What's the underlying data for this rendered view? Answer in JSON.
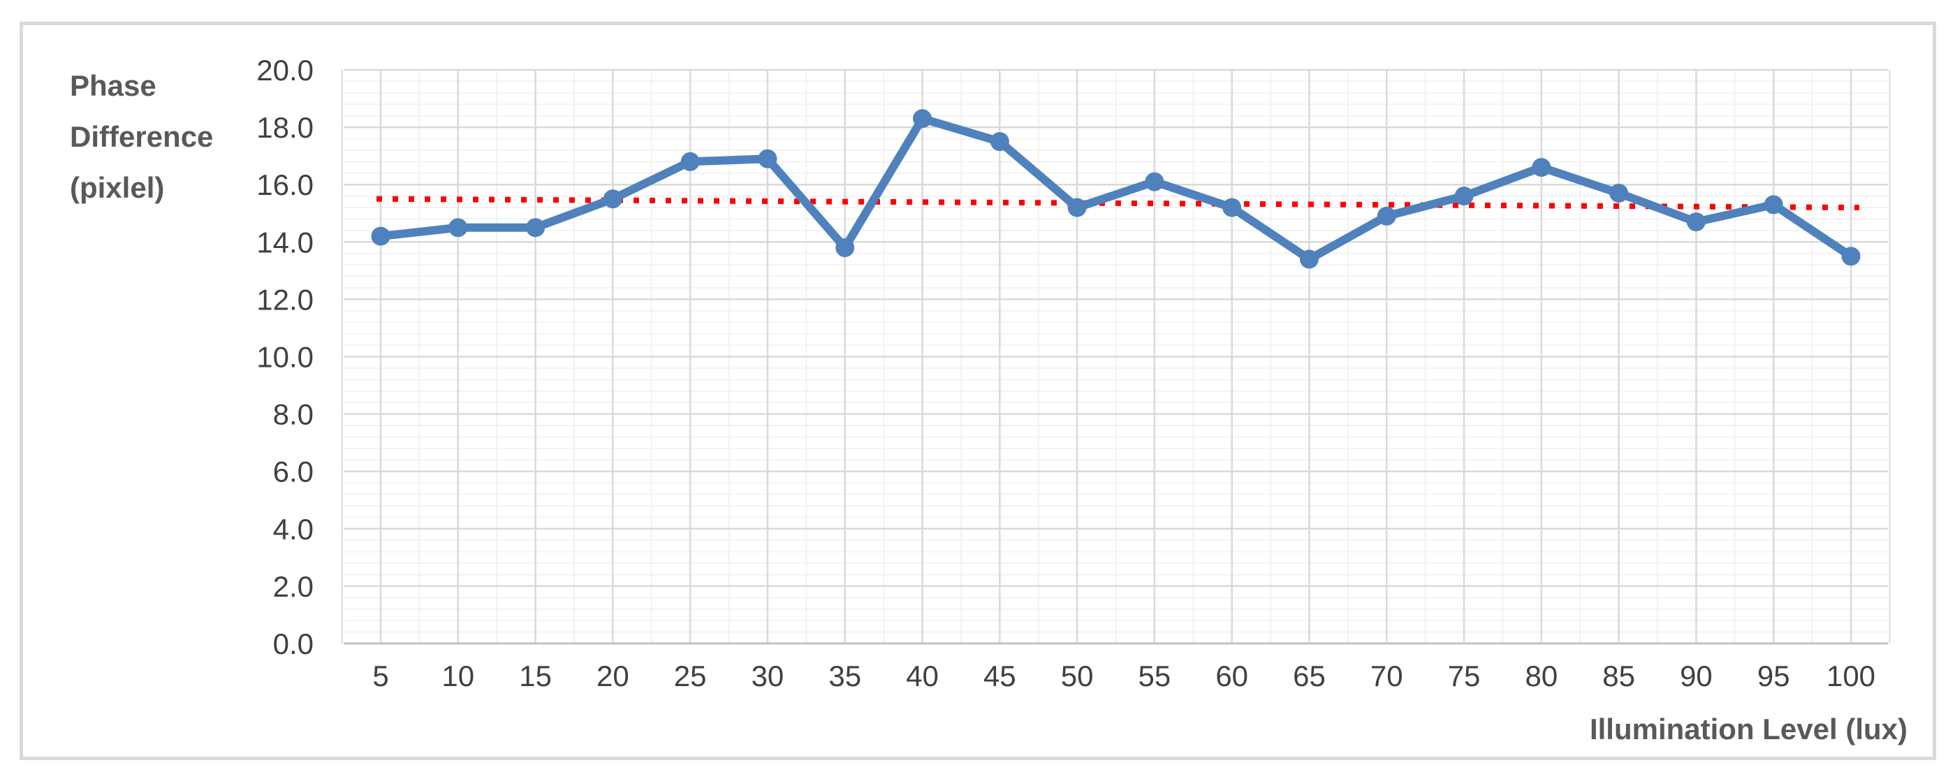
{
  "chart_data": {
    "type": "line",
    "title": "",
    "xlabel": "Illumination Level (lux)",
    "ylabel": "Phase Difference (pixlel)",
    "ylabel_lines": [
      "Phase",
      "Difference",
      "(pixlel)"
    ],
    "categories": [
      5,
      10,
      15,
      20,
      25,
      30,
      35,
      40,
      45,
      50,
      55,
      60,
      65,
      70,
      75,
      80,
      85,
      90,
      95,
      100
    ],
    "series": [
      {
        "name": "Phase Difference",
        "style": "line_with_circle_markers",
        "color": "#4f81bd",
        "values": [
          14.2,
          14.5,
          14.5,
          15.5,
          16.8,
          16.9,
          13.8,
          18.3,
          17.5,
          15.2,
          16.1,
          15.2,
          13.4,
          14.9,
          15.6,
          16.6,
          15.7,
          14.7,
          15.3,
          13.5
        ]
      }
    ],
    "trendline": {
      "name": "linear-trend",
      "style": "dotted",
      "color": "#ff0000",
      "start_value": 15.5,
      "end_value": 15.2
    },
    "y_axis": {
      "min": 0,
      "max": 20,
      "major_step": 2,
      "minor_step": 0.4,
      "tick_labels": [
        "0.0",
        "2.0",
        "4.0",
        "6.0",
        "8.0",
        "10.0",
        "12.0",
        "14.0",
        "16.0",
        "18.0",
        "20.0"
      ]
    },
    "x_axis": {
      "major_step": 5,
      "minor_step": 2.5,
      "tick_labels": [
        "5",
        "10",
        "15",
        "20",
        "25",
        "30",
        "35",
        "40",
        "45",
        "50",
        "55",
        "60",
        "65",
        "70",
        "75",
        "80",
        "85",
        "90",
        "95",
        "100"
      ]
    },
    "legend_position": "none",
    "grid": {
      "major": true,
      "minor": true
    }
  },
  "colors": {
    "background": "#ffffff",
    "card_border": "#d9d9d9",
    "grid_major": "#d9d9d9",
    "grid_minor": "#f2f2f2",
    "axis_line": "#c2c2c2",
    "tick_text": "#404040",
    "title_text": "#595959"
  }
}
